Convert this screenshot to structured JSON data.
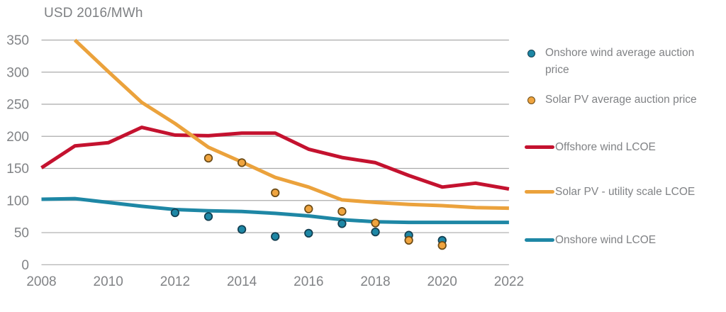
{
  "title": "USD 2016/MWh",
  "colors": {
    "offshore_wind": "#c4122f",
    "solar_pv": "#eba23c",
    "onshore_wind": "#1e87a5",
    "solar_dot_fill": "#efa43f",
    "solar_dot_stroke": "#6b4a15",
    "onshore_dot_fill": "#1e87a5",
    "onshore_dot_stroke": "#123d4f",
    "grid": "#ababab",
    "axis_text": "#818386"
  },
  "legend": {
    "items": [
      {
        "label": "Onshore wind average auction price",
        "marker": "dot"
      },
      {
        "label": "Solar PV average auction price",
        "marker": "dot"
      },
      {
        "label": "Offshore wind LCOE",
        "marker": "line"
      },
      {
        "label": "Solar PV - utility scale LCOE",
        "marker": "line"
      },
      {
        "label": "Onshore wind LCOE",
        "marker": "line"
      }
    ]
  },
  "chart_data": {
    "type": "line",
    "title": "USD 2016/MWh",
    "xlabel": "",
    "ylabel": "USD 2016/MWh",
    "xlim": [
      2008,
      2022
    ],
    "ylim": [
      0,
      350
    ],
    "x_ticks": [
      2008,
      2010,
      2012,
      2014,
      2016,
      2018,
      2020,
      2022
    ],
    "y_ticks": [
      0,
      50,
      100,
      150,
      200,
      250,
      300,
      350
    ],
    "grid": true,
    "legend_position": "right",
    "series": [
      {
        "name": "Offshore wind LCOE",
        "color": "#c4122f",
        "x": [
          2008,
          2009,
          2010,
          2011,
          2012,
          2013,
          2014,
          2015,
          2016,
          2017,
          2018,
          2019,
          2020,
          2021,
          2022
        ],
        "values": [
          151,
          185,
          190,
          214,
          202,
          201,
          205,
          205,
          180,
          167,
          159,
          139,
          121,
          127,
          118
        ]
      },
      {
        "name": "Solar PV - utility scale LCOE",
        "color": "#eba23c",
        "x": [
          2009,
          2010,
          2011,
          2012,
          2013,
          2014,
          2015,
          2016,
          2017,
          2018,
          2019,
          2020,
          2021,
          2022
        ],
        "values": [
          350,
          301,
          253,
          220,
          183,
          160,
          136,
          121,
          101,
          97,
          94,
          92,
          89,
          88
        ]
      },
      {
        "name": "Onshore wind LCOE",
        "color": "#1e87a5",
        "x": [
          2008,
          2009,
          2010,
          2011,
          2012,
          2013,
          2014,
          2015,
          2016,
          2017,
          2018,
          2019,
          2020,
          2021,
          2022
        ],
        "values": [
          102,
          103,
          97,
          91,
          86,
          84,
          83,
          80,
          76,
          70,
          67,
          66,
          66,
          66,
          66
        ]
      }
    ],
    "scatter": [
      {
        "name": "Onshore wind average auction price",
        "fill": "#1e87a5",
        "stroke": "#123d4f",
        "points": [
          [
            2012,
            81
          ],
          [
            2013,
            75
          ],
          [
            2014,
            55
          ],
          [
            2015,
            44
          ],
          [
            2016,
            49
          ],
          [
            2017,
            64
          ],
          [
            2018,
            51
          ],
          [
            2019,
            46
          ],
          [
            2020,
            38
          ]
        ]
      },
      {
        "name": "Solar PV average auction price",
        "fill": "#efa43f",
        "stroke": "#6b4a15",
        "points": [
          [
            2013,
            166
          ],
          [
            2014,
            159
          ],
          [
            2015,
            112
          ],
          [
            2016,
            87
          ],
          [
            2017,
            83
          ],
          [
            2018,
            65
          ],
          [
            2019,
            38
          ],
          [
            2020,
            30
          ]
        ]
      }
    ]
  }
}
